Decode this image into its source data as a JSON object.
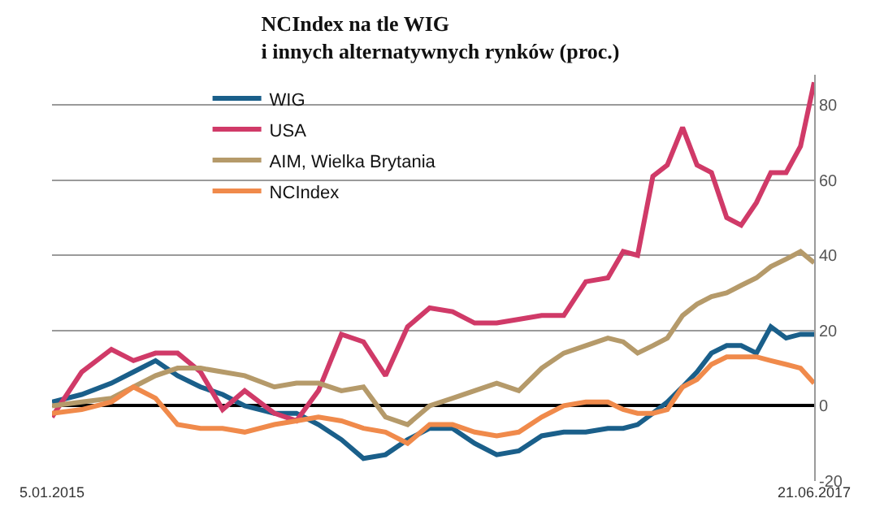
{
  "chart_data": {
    "type": "line",
    "title": "NCIndex na tle WIG\ni innych alternatywnych rynków (proc.)",
    "x": [
      "2015-01-05",
      "2015-02-09",
      "2015-03-16",
      "2015-04-11",
      "2015-05-07",
      "2015-06-02",
      "2015-06-29",
      "2015-07-25",
      "2015-08-20",
      "2015-09-24",
      "2015-10-20",
      "2015-11-15",
      "2015-12-12",
      "2016-01-07",
      "2016-02-02",
      "2016-02-28",
      "2016-03-25",
      "2016-04-21",
      "2016-05-17",
      "2016-06-12",
      "2016-07-08",
      "2016-08-04",
      "2016-08-30",
      "2016-09-25",
      "2016-10-21",
      "2016-11-08",
      "2016-11-25",
      "2016-12-13",
      "2016-12-30",
      "2017-01-17",
      "2017-02-03",
      "2017-02-20",
      "2017-03-10",
      "2017-03-27",
      "2017-04-14",
      "2017-05-01",
      "2017-05-19",
      "2017-06-05",
      "2017-06-21"
    ],
    "series": [
      {
        "name": "WIG",
        "color": "#1a5f8a",
        "values": [
          1,
          3,
          6,
          9,
          12,
          8,
          5,
          3,
          0,
          -2,
          -2,
          -5,
          -9,
          -14,
          -13,
          -9,
          -6,
          -6,
          -10,
          -13,
          -12,
          -8,
          -7,
          -7,
          -6,
          -6,
          -5,
          -2,
          1,
          5,
          9,
          14,
          16,
          16,
          14,
          21,
          18,
          19,
          19
        ]
      },
      {
        "name": "USA",
        "color": "#d03a68",
        "values": [
          -3,
          9,
          15,
          12,
          14,
          14,
          9,
          -1,
          4,
          -2,
          -4,
          4,
          19,
          17,
          8,
          21,
          26,
          25,
          22,
          22,
          23,
          24,
          24,
          33,
          34,
          41,
          40,
          61,
          64,
          74,
          64,
          62,
          50,
          48,
          54,
          62,
          62,
          69,
          86
        ]
      },
      {
        "name": "AIM, Wielka Brytania",
        "color": "#b59a6a",
        "values": [
          0,
          1,
          2,
          5,
          8,
          10,
          10,
          9,
          8,
          5,
          6,
          6,
          4,
          5,
          -3,
          -5,
          0,
          2,
          4,
          6,
          4,
          10,
          14,
          16,
          18,
          17,
          14,
          16,
          18,
          24,
          27,
          29,
          30,
          32,
          34,
          37,
          39,
          41,
          38
        ]
      },
      {
        "name": "NCIndex",
        "color": "#f08a4b",
        "values": [
          -2,
          -1,
          1,
          5,
          2,
          -5,
          -6,
          -6,
          -7,
          -5,
          -4,
          -3,
          -4,
          -6,
          -7,
          -10,
          -5,
          -5,
          -7,
          -8,
          -7,
          -3,
          0,
          1,
          1,
          -1,
          -2,
          -2,
          -1,
          5,
          7,
          11,
          13,
          13,
          13,
          12,
          11,
          10,
          6
        ]
      }
    ],
    "xlim": [
      "2015-01-05",
      "2017-06-21"
    ],
    "xticks": [
      {
        "value": "2015-01-05",
        "label": "5.01.2015"
      },
      {
        "value": "2017-06-21",
        "label": "21.06.2017"
      }
    ],
    "ylim": [
      -20,
      88
    ],
    "yticks": [
      -20,
      0,
      20,
      40,
      60,
      80
    ],
    "grid": "y",
    "legend": "top left",
    "marker": "none",
    "line_style": "solid"
  }
}
